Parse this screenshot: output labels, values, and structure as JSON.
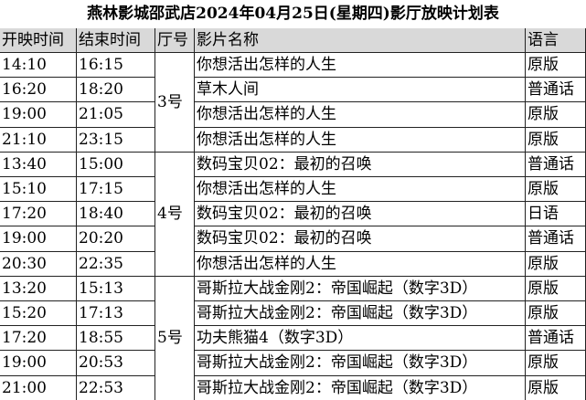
{
  "title": "燕林影城邵武店2024年04月25日(星期四)影厅放映计划表",
  "header": [
    "开映时间",
    "结束时间",
    "厅号",
    "影片名称",
    "语言"
  ],
  "groups": [
    {
      "hall": "3号",
      "shows": [
        [
          "14:10",
          "16:15",
          "你想活出怎样的人生",
          "原版"
        ],
        [
          "16:20",
          "18:20",
          "草木人间",
          "普通话"
        ],
        [
          "19:00",
          "21:05",
          "你想活出怎样的人生",
          "原版"
        ],
        [
          "21:10",
          "23:15",
          "你想活出怎样的人生",
          "原版"
        ]
      ]
    },
    {
      "hall": "4号",
      "shows": [
        [
          "13:40",
          "15:00",
          "数码宝贝02：最初的召唤",
          "普通话"
        ],
        [
          "15:10",
          "17:15",
          "你想活出怎样的人生",
          "原版"
        ],
        [
          "17:20",
          "18:40",
          "数码宝贝02：最初的召唤",
          "日语"
        ],
        [
          "19:00",
          "20:20",
          "数码宝贝02：最初的召唤",
          "普通话"
        ],
        [
          "20:30",
          "22:35",
          "你想活出怎样的人生",
          "原版"
        ]
      ]
    },
    {
      "hall": "5号",
      "shows": [
        [
          "13:20",
          "15:13",
          "哥斯拉大战金刚2：帝国崛起（数字3D）",
          "原版"
        ],
        [
          "15:20",
          "17:13",
          "哥斯拉大战金刚2：帝国崛起（数字3D）",
          "原版"
        ],
        [
          "17:20",
          "18:55",
          "功夫熊猫4（数字3D）",
          "普通话"
        ],
        [
          "19:00",
          "20:53",
          "哥斯拉大战金刚2：帝国崛起（数字3D）",
          "原版"
        ],
        [
          "21:00",
          "22:53",
          "哥斯拉大战金刚2：帝国崛起（数字3D）",
          "原版"
        ]
      ]
    }
  ]
}
